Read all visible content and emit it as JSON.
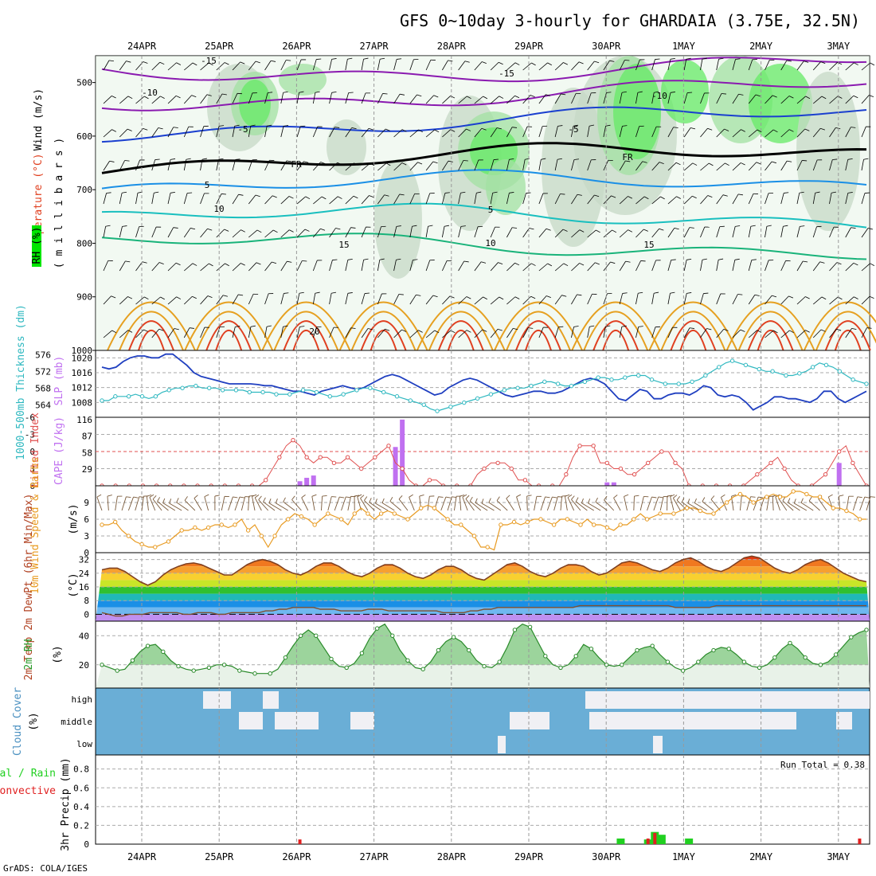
{
  "title": "GFS 0~10day 3-hourly for GHARDAIA (3.75E, 32.5N)",
  "credit": "GrADS: COLA/IGES",
  "dates": [
    "24APR",
    "25APR",
    "26APR",
    "27APR",
    "28APR",
    "29APR",
    "30APR",
    "1MAY",
    "2MAY",
    "3MAY"
  ],
  "colors": {
    "green_bright": "#00e600",
    "green_mid": "#6fd36f",
    "rh_gray": "#b0c4b0",
    "purple": "#8a1ab0",
    "blue_dark": "#1a3fcf",
    "blue_light": "#1a8fe6",
    "teal": "#19bfbf",
    "green_line": "#19b37a",
    "orange": "#e6a020",
    "red": "#e04020",
    "slp_blue": "#1f3fc0",
    "thick_cyan": "#2fb8c0",
    "li_red": "#e05050",
    "cape_purple": "#c070f0",
    "wind_orange": "#e89a20",
    "barb_brown": "#7a5a3a",
    "cloud_blue": "#6aaed6",
    "cloud_white": "#f0f0f4",
    "precip_green": "#20d020",
    "precip_red": "#e02020"
  },
  "panels": {
    "upper": {
      "ylabel_wind": "Wind (m/s)",
      "ylabel_temp": "Temperature (°C)",
      "ylabel_mb": "( m i l l i b a r s )",
      "ylabel_rh": "RH (%)",
      "pressure_ticks": [
        "500",
        "600",
        "700",
        "800",
        "900",
        "1000"
      ],
      "contour_labels": [
        "-15",
        "-10",
        "-5",
        "FR",
        "5",
        "10",
        "15",
        "20",
        "-15",
        "-10",
        "-5",
        "FR",
        "5",
        "10",
        "15"
      ]
    },
    "slp": {
      "ylabel_thick": "1000-500mb Thickness (dm)",
      "ylabel_slp": "SLP (mb)",
      "left_ticks": [
        "576",
        "572",
        "568",
        "564"
      ],
      "right_ticks": [
        "1020",
        "1016",
        "1012",
        "1008"
      ]
    },
    "cape": {
      "ylabel_li": "Lifted Index",
      "ylabel_cape": "CAPE (J/kg)",
      "li_ticks": [
        "-6",
        "-3",
        "0",
        "3",
        "6"
      ],
      "cape_ticks": [
        "116",
        "87",
        "58",
        "29"
      ]
    },
    "wind": {
      "ylabel": "10m Wind Speed & Barbs",
      "unit": "(m/s)",
      "ticks": [
        "9",
        "6",
        "3",
        "0"
      ]
    },
    "temp": {
      "ylabel": "2m Temp 2m DewPt (6hr Min/Max)",
      "unit": "(°C)",
      "ticks": [
        "32",
        "24",
        "16",
        "8",
        "0"
      ]
    },
    "rh": {
      "ylabel": "2m RH",
      "unit": "(%)",
      "ticks": [
        "40",
        "20"
      ]
    },
    "cloud": {
      "ylabel": "Cloud Cover",
      "unit": "(%)",
      "levels": [
        "high",
        "middle",
        "low"
      ]
    },
    "precip": {
      "ylabel": "3hr Precip (mm)",
      "ylabel2": "Total / Rain",
      "ylabel3": "Convective",
      "ticks": [
        "0.8",
        "0.6",
        "0.4",
        "0.2",
        "0"
      ],
      "run_total": "Run Total = 0.38"
    }
  },
  "chart_data": {
    "type": "meteogram",
    "x_start": "23APR 12Z",
    "x_step_hours": 3,
    "slp_mb": [
      1017.5,
      1017,
      1017.5,
      1019,
      1020,
      1020.5,
      1020.5,
      1020,
      1020,
      1021,
      1021,
      1019.5,
      1018,
      1016,
      1015,
      1014.5,
      1014,
      1013.5,
      1013,
      1013,
      1013,
      1013,
      1012.8,
      1012.5,
      1012.5,
      1012,
      1011.5,
      1011,
      1011,
      1010.5,
      1010,
      1011,
      1011.5,
      1012,
      1012.5,
      1012,
      1011.5,
      1012,
      1013,
      1014,
      1015,
      1015.5,
      1015,
      1014,
      1013,
      1012,
      1011,
      1010,
      1010.5,
      1012,
      1013,
      1014,
      1014.5,
      1014,
      1013,
      1012,
      1011,
      1010,
      1009.5,
      1010,
      1010.5,
      1011,
      1011,
      1010.5,
      1010.5,
      1011,
      1012,
      1013,
      1014,
      1014.5,
      1014,
      1013,
      1011,
      1009,
      1008.5,
      1010,
      1011.5,
      1011,
      1009,
      1009,
      1010,
      1010.5,
      1010.5,
      1010,
      1011,
      1012.5,
      1012,
      1010,
      1009.5,
      1010,
      1009.5,
      1008,
      1006,
      1007,
      1008,
      1009.5,
      1009.5,
      1009,
      1009,
      1008.5,
      1008,
      1009,
      1011,
      1011,
      1009,
      1008,
      1009,
      1010,
      1011
    ],
    "thickness_dm": [
      565,
      565,
      566,
      566,
      566,
      566.5,
      566,
      565.5,
      566,
      567,
      567.5,
      568,
      568,
      568.5,
      568.5,
      568,
      568,
      568,
      567.5,
      567.5,
      567.5,
      567.5,
      567,
      567,
      567,
      567,
      566.5,
      566.5,
      566.5,
      567,
      567.5,
      567.5,
      567,
      566.5,
      566,
      566,
      566.5,
      567,
      567.5,
      568,
      568,
      567.5,
      567,
      566.5,
      566,
      565.5,
      565,
      564.5,
      564,
      563,
      562.5,
      563,
      563.5,
      564,
      564.5,
      565,
      565.5,
      566,
      566.5,
      567,
      567.5,
      568,
      568,
      568,
      568.5,
      569,
      569.5,
      569.5,
      569,
      568.5,
      568.5,
      569,
      569.5,
      570,
      570.5,
      570.5,
      570,
      570,
      570.5,
      571,
      571,
      571,
      570,
      569.5,
      569,
      569,
      569,
      569,
      569.5,
      570,
      571,
      572,
      573,
      574,
      574.5,
      574,
      573.5,
      573,
      572.5,
      572,
      572,
      571.5,
      571,
      571,
      571.5,
      572,
      573,
      574,
      573.5,
      573,
      572,
      571,
      570,
      569.5,
      569
    ],
    "lifted_index": [
      6,
      6,
      6,
      6,
      6,
      6,
      6,
      6,
      6,
      6,
      6,
      6,
      6,
      6,
      6,
      6,
      6,
      6,
      6,
      6,
      6,
      6,
      6,
      6,
      5,
      3,
      1,
      -1,
      -2,
      -1,
      1,
      2,
      1,
      1,
      2,
      2,
      1,
      2,
      3,
      2,
      1,
      0,
      -1,
      2,
      3,
      5,
      6,
      6,
      5,
      5,
      6,
      6,
      6,
      6,
      6,
      4,
      3,
      2,
      2,
      2,
      3,
      5,
      5,
      6,
      6,
      6,
      6,
      6,
      4,
      1,
      -1,
      -1,
      -1,
      2,
      2,
      3,
      3,
      4,
      4,
      3,
      2,
      1,
      0,
      0,
      2,
      3,
      6,
      6,
      6,
      6,
      6,
      6,
      6,
      6,
      6,
      5,
      4,
      3,
      2,
      1,
      3,
      5,
      6,
      6,
      6,
      5,
      4,
      2,
      0,
      -1,
      2,
      4,
      6
    ],
    "cape_jkg": [
      0,
      0,
      0,
      0,
      0,
      0,
      0,
      0,
      0,
      0,
      0,
      0,
      0,
      0,
      0,
      0,
      0,
      0,
      0,
      0,
      0,
      0,
      0,
      0,
      0,
      0,
      0,
      0,
      0,
      8,
      14,
      18,
      0,
      0,
      0,
      0,
      0,
      0,
      0,
      0,
      0,
      0,
      0,
      68,
      116,
      0,
      0,
      0,
      0,
      0,
      0,
      0,
      0,
      0,
      0,
      0,
      0,
      0,
      0,
      0,
      0,
      0,
      0,
      0,
      0,
      0,
      0,
      0,
      0,
      0,
      0,
      0,
      0,
      0,
      6,
      6,
      0,
      0,
      0,
      0,
      0,
      0,
      0,
      0,
      0,
      0,
      0,
      0,
      0,
      0,
      0,
      0,
      0,
      0,
      0,
      0,
      0,
      0,
      0,
      0,
      0,
      0,
      0,
      0,
      0,
      0,
      0,
      0,
      40,
      0,
      0,
      0,
      0
    ],
    "wind_speed_ms": [
      5,
      5,
      5.5,
      4,
      3,
      2,
      1.5,
      1,
      1,
      1.5,
      2,
      3,
      4,
      4,
      4.5,
      4,
      4.5,
      5,
      5,
      4.5,
      5,
      6,
      4,
      5,
      3,
      1,
      3,
      5,
      6,
      7,
      6.5,
      6,
      5,
      6,
      7,
      6.5,
      6,
      5,
      7,
      8,
      7,
      6,
      7,
      7.5,
      7,
      6.5,
      6,
      7,
      8,
      8.5,
      8,
      7,
      6,
      5,
      5,
      4,
      3,
      1,
      1,
      0.5,
      5,
      5,
      5.5,
      5,
      5.5,
      6,
      6,
      5.5,
      5,
      6,
      6,
      5.5,
      5,
      6,
      5,
      5,
      4.5,
      4,
      5,
      5,
      6,
      7,
      6,
      6.5,
      7,
      7,
      7,
      7.5,
      8,
      8,
      7.5,
      7,
      7,
      8,
      9,
      10,
      10.5,
      10,
      9,
      9.5,
      10,
      10.5,
      10,
      10,
      11,
      11,
      10.5,
      10,
      10,
      9,
      8,
      8,
      7.5,
      7,
      6,
      6
    ],
    "temp_c": [
      26,
      27,
      27,
      25,
      22,
      19,
      17,
      19,
      23,
      26,
      28,
      29.5,
      30,
      29,
      27,
      25,
      23,
      23,
      26,
      29,
      31,
      32,
      31,
      29,
      26,
      24,
      23,
      25,
      28,
      30,
      30,
      28,
      25,
      23,
      22,
      24,
      27,
      29,
      29,
      27,
      24,
      22,
      21,
      23,
      26,
      28,
      28,
      26,
      23,
      21,
      20,
      23,
      26,
      29,
      30,
      28,
      25,
      23,
      22,
      24,
      27,
      29,
      29,
      28,
      25,
      23,
      24,
      27,
      30,
      31,
      30,
      28,
      26,
      25,
      27,
      30,
      32,
      33,
      31,
      28,
      26,
      25,
      27,
      30,
      33,
      34,
      33,
      30,
      27,
      25,
      24,
      26,
      29,
      31,
      32,
      30,
      27,
      24,
      22,
      20,
      19
    ],
    "dewpt_c": [
      1,
      0,
      -1,
      -1,
      0,
      0,
      0,
      1,
      1,
      1,
      1,
      1,
      0,
      0,
      1,
      1,
      1,
      0,
      0,
      1,
      1,
      1,
      1,
      1,
      2,
      2,
      3,
      3,
      4,
      4,
      4,
      4,
      3,
      3,
      3,
      2,
      2,
      2,
      2,
      3,
      3,
      3,
      2,
      2,
      2,
      2,
      2,
      2,
      2,
      2,
      1,
      1,
      1,
      1,
      2,
      2,
      3,
      3,
      4,
      4,
      4,
      4,
      4,
      4,
      4,
      4,
      4,
      4,
      4,
      4,
      5,
      5,
      5,
      5,
      5,
      5,
      5,
      5,
      5,
      5,
      5,
      5,
      5,
      5,
      4,
      4,
      4,
      4,
      4,
      4,
      5,
      5,
      5,
      5,
      5,
      5,
      5,
      5,
      5,
      5,
      5,
      5,
      5,
      5,
      5,
      5,
      5,
      5,
      5,
      5,
      5,
      5,
      5
    ],
    "rh_pct": [
      20,
      18,
      16,
      17,
      23,
      29,
      33,
      34,
      29,
      23,
      19,
      17,
      16,
      17,
      18,
      20,
      20,
      19,
      16,
      15,
      14,
      14,
      14,
      17,
      25,
      33,
      40,
      44,
      40,
      32,
      24,
      19,
      18,
      21,
      28,
      38,
      45,
      48,
      40,
      30,
      23,
      18,
      17,
      22,
      30,
      36,
      39,
      36,
      30,
      23,
      19,
      18,
      22,
      32,
      44,
      48,
      46,
      36,
      26,
      20,
      18,
      20,
      26,
      34,
      31,
      25,
      20,
      19,
      20,
      25,
      30,
      32,
      33,
      27,
      22,
      18,
      16,
      18,
      22,
      27,
      30,
      32,
      31,
      27,
      22,
      19,
      18,
      20,
      25,
      31,
      35,
      31,
      25,
      21,
      20,
      22,
      27,
      33,
      39,
      42,
      44
    ],
    "precip_total_mm": [
      0,
      0,
      0,
      0,
      0,
      0,
      0,
      0,
      0,
      0,
      0,
      0,
      0,
      0,
      0,
      0,
      0,
      0,
      0,
      0,
      0,
      0,
      0,
      0,
      0,
      0,
      0,
      0,
      0,
      0,
      0,
      0,
      0,
      0,
      0,
      0,
      0,
      0,
      0,
      0,
      0,
      0,
      0,
      0,
      0,
      0,
      0,
      0,
      0,
      0,
      0,
      0,
      0,
      0,
      0,
      0,
      0,
      0,
      0,
      0,
      0,
      0,
      0,
      0,
      0,
      0,
      0,
      0,
      0,
      0,
      0,
      0,
      0,
      0,
      0,
      0,
      0.06,
      0,
      0,
      0,
      0.05,
      0.13,
      0.1,
      0,
      0,
      0,
      0.06,
      0,
      0,
      0,
      0,
      0,
      0,
      0,
      0,
      0,
      0,
      0,
      0,
      0,
      0,
      0,
      0,
      0,
      0,
      0,
      0,
      0,
      0,
      0,
      0,
      0,
      0
    ],
    "precip_conv_mm": [
      0,
      0,
      0,
      0,
      0,
      0,
      0,
      0,
      0,
      0,
      0,
      0,
      0,
      0,
      0,
      0,
      0,
      0,
      0,
      0,
      0,
      0,
      0,
      0,
      0,
      0,
      0,
      0,
      0,
      0.05,
      0,
      0,
      0,
      0,
      0,
      0,
      0,
      0,
      0,
      0,
      0,
      0,
      0,
      0,
      0,
      0,
      0,
      0,
      0,
      0,
      0,
      0,
      0,
      0,
      0,
      0,
      0,
      0,
      0,
      0,
      0,
      0,
      0,
      0,
      0,
      0,
      0,
      0,
      0,
      0,
      0,
      0,
      0,
      0,
      0,
      0,
      0,
      0,
      0,
      0,
      0.06,
      0.12,
      0,
      0,
      0,
      0,
      0,
      0,
      0,
      0,
      0,
      0,
      0,
      0,
      0,
      0,
      0,
      0,
      0,
      0,
      0,
      0,
      0,
      0,
      0,
      0,
      0,
      0,
      0,
      0,
      0,
      0.06,
      0
    ]
  }
}
